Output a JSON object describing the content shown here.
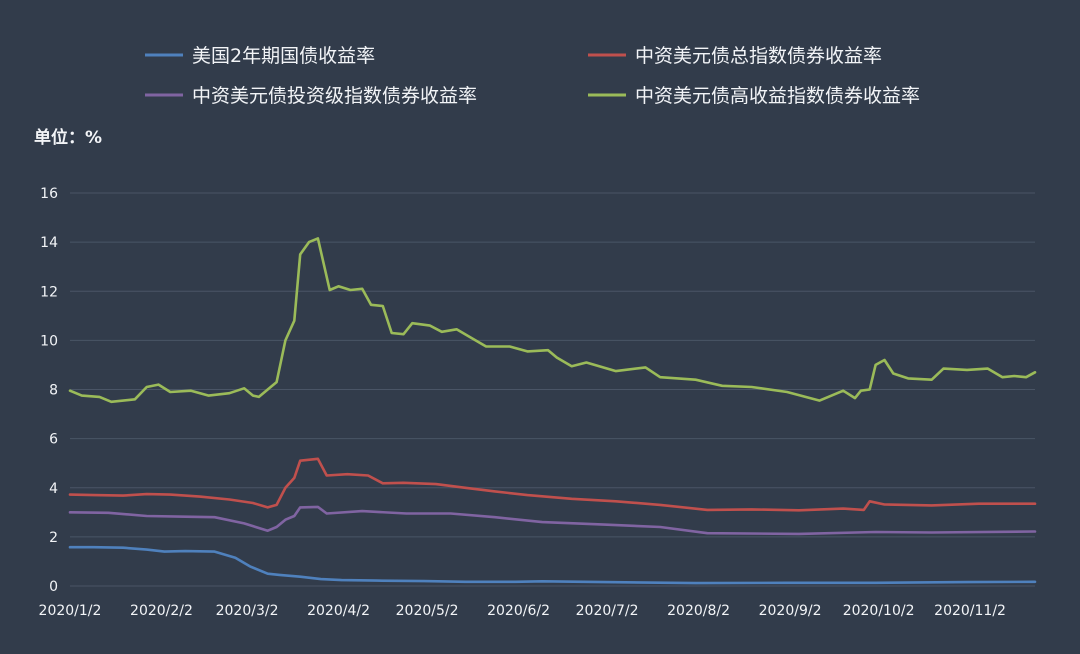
{
  "chart_data": {
    "type": "line",
    "unit_label": "单位：%",
    "ylim": [
      0,
      16
    ],
    "yticks": [
      0,
      2,
      4,
      6,
      8,
      10,
      12,
      14,
      16
    ],
    "grid": true,
    "legend_placement": "top",
    "x_start": "2020-01-02",
    "x_end": "2020-11-24",
    "xticks": [
      {
        "date": "2020-01-02",
        "label": "2020/1/2"
      },
      {
        "date": "2020-02-02",
        "label": "2020/2/2"
      },
      {
        "date": "2020-03-02",
        "label": "2020/3/2"
      },
      {
        "date": "2020-04-02",
        "label": "2020/4/2"
      },
      {
        "date": "2020-05-02",
        "label": "2020/5/2"
      },
      {
        "date": "2020-06-02",
        "label": "2020/6/2"
      },
      {
        "date": "2020-07-02",
        "label": "2020/7/2"
      },
      {
        "date": "2020-08-02",
        "label": "2020/8/2"
      },
      {
        "date": "2020-09-02",
        "label": "2020/9/2"
      },
      {
        "date": "2020-10-02",
        "label": "2020/10/2"
      },
      {
        "date": "2020-11-02",
        "label": "2020/11/2"
      }
    ],
    "series": [
      {
        "name": "美国2年期国债收益率",
        "color": "#4f81bd",
        "points": [
          [
            "2020-01-02",
            1.58
          ],
          [
            "2020-01-10",
            1.58
          ],
          [
            "2020-01-20",
            1.56
          ],
          [
            "2020-01-28",
            1.48
          ],
          [
            "2020-02-03",
            1.4
          ],
          [
            "2020-02-10",
            1.42
          ],
          [
            "2020-02-20",
            1.4
          ],
          [
            "2020-02-27",
            1.15
          ],
          [
            "2020-03-03",
            0.8
          ],
          [
            "2020-03-09",
            0.5
          ],
          [
            "2020-03-13",
            0.45
          ],
          [
            "2020-03-20",
            0.38
          ],
          [
            "2020-03-27",
            0.28
          ],
          [
            "2020-04-03",
            0.24
          ],
          [
            "2020-04-15",
            0.22
          ],
          [
            "2020-05-01",
            0.2
          ],
          [
            "2020-05-15",
            0.17
          ],
          [
            "2020-06-01",
            0.17
          ],
          [
            "2020-06-10",
            0.19
          ],
          [
            "2020-07-01",
            0.16
          ],
          [
            "2020-08-01",
            0.12
          ],
          [
            "2020-09-01",
            0.13
          ],
          [
            "2020-10-01",
            0.13
          ],
          [
            "2020-11-01",
            0.16
          ],
          [
            "2020-11-24",
            0.17
          ]
        ]
      },
      {
        "name": "中资美元债总指数债券收益率",
        "color": "#c0504d",
        "points": [
          [
            "2020-01-02",
            3.72
          ],
          [
            "2020-01-10",
            3.7
          ],
          [
            "2020-01-20",
            3.68
          ],
          [
            "2020-01-28",
            3.74
          ],
          [
            "2020-02-05",
            3.72
          ],
          [
            "2020-02-15",
            3.64
          ],
          [
            "2020-02-25",
            3.52
          ],
          [
            "2020-03-04",
            3.38
          ],
          [
            "2020-03-09",
            3.2
          ],
          [
            "2020-03-12",
            3.3
          ],
          [
            "2020-03-15",
            4.0
          ],
          [
            "2020-03-18",
            4.4
          ],
          [
            "2020-03-20",
            5.1
          ],
          [
            "2020-03-26",
            5.18
          ],
          [
            "2020-03-29",
            4.5
          ],
          [
            "2020-04-05",
            4.55
          ],
          [
            "2020-04-12",
            4.5
          ],
          [
            "2020-04-17",
            4.18
          ],
          [
            "2020-04-24",
            4.2
          ],
          [
            "2020-05-05",
            4.15
          ],
          [
            "2020-05-15",
            4.0
          ],
          [
            "2020-05-25",
            3.85
          ],
          [
            "2020-06-05",
            3.7
          ],
          [
            "2020-06-20",
            3.55
          ],
          [
            "2020-07-05",
            3.45
          ],
          [
            "2020-07-20",
            3.3
          ],
          [
            "2020-08-05",
            3.1
          ],
          [
            "2020-08-20",
            3.12
          ],
          [
            "2020-09-05",
            3.08
          ],
          [
            "2020-09-20",
            3.15
          ],
          [
            "2020-09-27",
            3.1
          ],
          [
            "2020-09-29",
            3.45
          ],
          [
            "2020-10-04",
            3.32
          ],
          [
            "2020-10-20",
            3.28
          ],
          [
            "2020-11-05",
            3.35
          ],
          [
            "2020-11-24",
            3.35
          ]
        ]
      },
      {
        "name": "中资美元债投资级指数债券收益率",
        "color": "#8064a2",
        "points": [
          [
            "2020-01-02",
            3.0
          ],
          [
            "2020-01-15",
            2.98
          ],
          [
            "2020-01-28",
            2.85
          ],
          [
            "2020-02-10",
            2.82
          ],
          [
            "2020-02-20",
            2.8
          ],
          [
            "2020-03-01",
            2.55
          ],
          [
            "2020-03-09",
            2.25
          ],
          [
            "2020-03-12",
            2.4
          ],
          [
            "2020-03-15",
            2.7
          ],
          [
            "2020-03-18",
            2.85
          ],
          [
            "2020-03-20",
            3.2
          ],
          [
            "2020-03-26",
            3.22
          ],
          [
            "2020-03-29",
            2.95
          ],
          [
            "2020-04-10",
            3.05
          ],
          [
            "2020-04-25",
            2.95
          ],
          [
            "2020-05-10",
            2.95
          ],
          [
            "2020-05-25",
            2.8
          ],
          [
            "2020-06-10",
            2.6
          ],
          [
            "2020-07-01",
            2.5
          ],
          [
            "2020-07-20",
            2.4
          ],
          [
            "2020-08-05",
            2.15
          ],
          [
            "2020-09-05",
            2.12
          ],
          [
            "2020-10-01",
            2.2
          ],
          [
            "2020-10-20",
            2.18
          ],
          [
            "2020-11-24",
            2.22
          ]
        ]
      },
      {
        "name": "中资美元债高收益指数债券收益率",
        "color": "#9bbb59",
        "points": [
          [
            "2020-01-02",
            7.95
          ],
          [
            "2020-01-06",
            7.75
          ],
          [
            "2020-01-12",
            7.7
          ],
          [
            "2020-01-16",
            7.5
          ],
          [
            "2020-01-24",
            7.6
          ],
          [
            "2020-01-28",
            8.1
          ],
          [
            "2020-02-01",
            8.2
          ],
          [
            "2020-02-05",
            7.9
          ],
          [
            "2020-02-12",
            7.95
          ],
          [
            "2020-02-18",
            7.75
          ],
          [
            "2020-02-25",
            7.85
          ],
          [
            "2020-03-01",
            8.05
          ],
          [
            "2020-03-04",
            7.75
          ],
          [
            "2020-03-06",
            7.7
          ],
          [
            "2020-03-10",
            8.1
          ],
          [
            "2020-03-12",
            8.3
          ],
          [
            "2020-03-15",
            10.0
          ],
          [
            "2020-03-18",
            10.8
          ],
          [
            "2020-03-20",
            13.5
          ],
          [
            "2020-03-23",
            14.0
          ],
          [
            "2020-03-26",
            14.15
          ],
          [
            "2020-03-30",
            12.05
          ],
          [
            "2020-04-02",
            12.2
          ],
          [
            "2020-04-06",
            12.05
          ],
          [
            "2020-04-10",
            12.1
          ],
          [
            "2020-04-13",
            11.45
          ],
          [
            "2020-04-17",
            11.4
          ],
          [
            "2020-04-20",
            10.3
          ],
          [
            "2020-04-24",
            10.25
          ],
          [
            "2020-04-27",
            10.7
          ],
          [
            "2020-05-03",
            10.6
          ],
          [
            "2020-05-07",
            10.35
          ],
          [
            "2020-05-12",
            10.45
          ],
          [
            "2020-05-17",
            10.1
          ],
          [
            "2020-05-22",
            9.75
          ],
          [
            "2020-05-30",
            9.75
          ],
          [
            "2020-06-05",
            9.55
          ],
          [
            "2020-06-12",
            9.6
          ],
          [
            "2020-06-15",
            9.3
          ],
          [
            "2020-06-20",
            8.95
          ],
          [
            "2020-06-25",
            9.1
          ],
          [
            "2020-07-05",
            8.75
          ],
          [
            "2020-07-15",
            8.9
          ],
          [
            "2020-07-20",
            8.5
          ],
          [
            "2020-08-01",
            8.4
          ],
          [
            "2020-08-10",
            8.15
          ],
          [
            "2020-08-20",
            8.1
          ],
          [
            "2020-09-01",
            7.9
          ],
          [
            "2020-09-12",
            7.55
          ],
          [
            "2020-09-20",
            7.95
          ],
          [
            "2020-09-24",
            7.65
          ],
          [
            "2020-09-26",
            7.95
          ],
          [
            "2020-09-29",
            8.0
          ],
          [
            "2020-10-01",
            9.0
          ],
          [
            "2020-10-04",
            9.2
          ],
          [
            "2020-10-07",
            8.65
          ],
          [
            "2020-10-12",
            8.45
          ],
          [
            "2020-10-20",
            8.4
          ],
          [
            "2020-10-24",
            8.85
          ],
          [
            "2020-11-01",
            8.8
          ],
          [
            "2020-11-08",
            8.85
          ],
          [
            "2020-11-13",
            8.5
          ],
          [
            "2020-11-17",
            8.55
          ],
          [
            "2020-11-21",
            8.5
          ],
          [
            "2020-11-24",
            8.7
          ]
        ]
      }
    ]
  }
}
